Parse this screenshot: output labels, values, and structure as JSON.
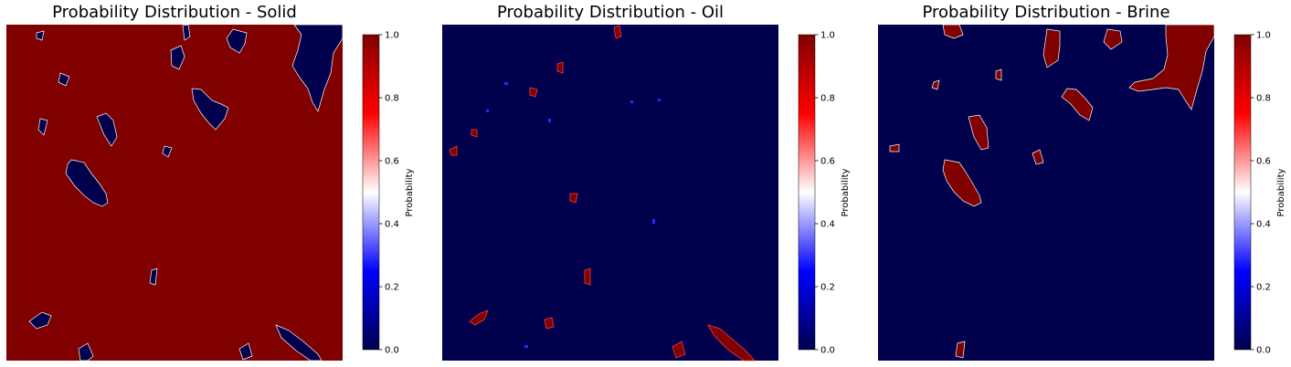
{
  "chart_data": [
    {
      "type": "heatmap",
      "title": "Probability Distribution - Solid",
      "colormap": "seismic",
      "dominant_value": 1.0,
      "feature_value": 0.0,
      "colorbar": {
        "label": "Probability",
        "ticks": [
          "0.0",
          "0.2",
          "0.4",
          "0.6",
          "0.8",
          "1.0"
        ],
        "range": [
          0.0,
          1.0
        ]
      },
      "grid": false,
      "axes_visible": false
    },
    {
      "type": "heatmap",
      "title": "Probability Distribution - Oil",
      "colormap": "seismic",
      "dominant_value": 0.0,
      "feature_value": 1.0,
      "colorbar": {
        "label": "Probability",
        "ticks": [
          "0.0",
          "0.2",
          "0.4",
          "0.6",
          "0.8",
          "1.0"
        ],
        "range": [
          0.0,
          1.0
        ]
      },
      "grid": false,
      "axes_visible": false
    },
    {
      "type": "heatmap",
      "title": "Probability Distribution - Brine",
      "colormap": "seismic",
      "dominant_value": 0.0,
      "feature_value": 1.0,
      "colorbar": {
        "label": "Probability",
        "ticks": [
          "0.0",
          "0.2",
          "0.4",
          "0.6",
          "0.8",
          "1.0"
        ],
        "range": [
          0.0,
          1.0
        ]
      },
      "grid": false,
      "axes_visible": false
    }
  ],
  "colors": {
    "dark_red": "#800000",
    "red": "#ff0000",
    "white": "#ffffff",
    "blue": "#0000ff",
    "navy": "#00004c"
  }
}
